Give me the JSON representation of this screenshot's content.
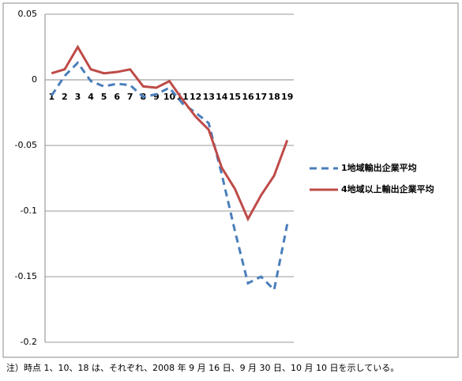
{
  "chart_data": {
    "type": "line",
    "categories": [
      "1",
      "2",
      "3",
      "4",
      "5",
      "6",
      "7",
      "8",
      "9",
      "10",
      "11",
      "12",
      "13",
      "14",
      "15",
      "16",
      "17",
      "18",
      "19"
    ],
    "series": [
      {
        "name": "1地域輸出企業平均",
        "color": "#4a7ebb",
        "dash": true,
        "values": [
          -0.012,
          0.003,
          0.013,
          -0.001,
          -0.005,
          -0.003,
          -0.004,
          -0.013,
          -0.011,
          -0.006,
          -0.018,
          -0.025,
          -0.033,
          -0.072,
          -0.115,
          -0.155,
          -0.15,
          -0.16,
          -0.11
        ]
      },
      {
        "name": "4地域以上輸出企業平均",
        "color": "#be4b48",
        "dash": false,
        "values": [
          0.005,
          0.008,
          0.025,
          0.008,
          0.005,
          0.006,
          0.008,
          -0.005,
          -0.006,
          -0.001,
          -0.015,
          -0.028,
          -0.038,
          -0.067,
          -0.083,
          -0.106,
          -0.088,
          -0.073,
          -0.046
        ]
      }
    ],
    "ylim": [
      -0.2,
      0.05
    ],
    "yticks": [
      -0.2,
      -0.15,
      -0.1,
      -0.05,
      0,
      0.05
    ],
    "grid": true,
    "legend": "right",
    "note": "注）時点 1、10、18 は、それぞれ、2008 年 9 月 16 日、9 月 30 日、10 月 10 日を示している。"
  }
}
